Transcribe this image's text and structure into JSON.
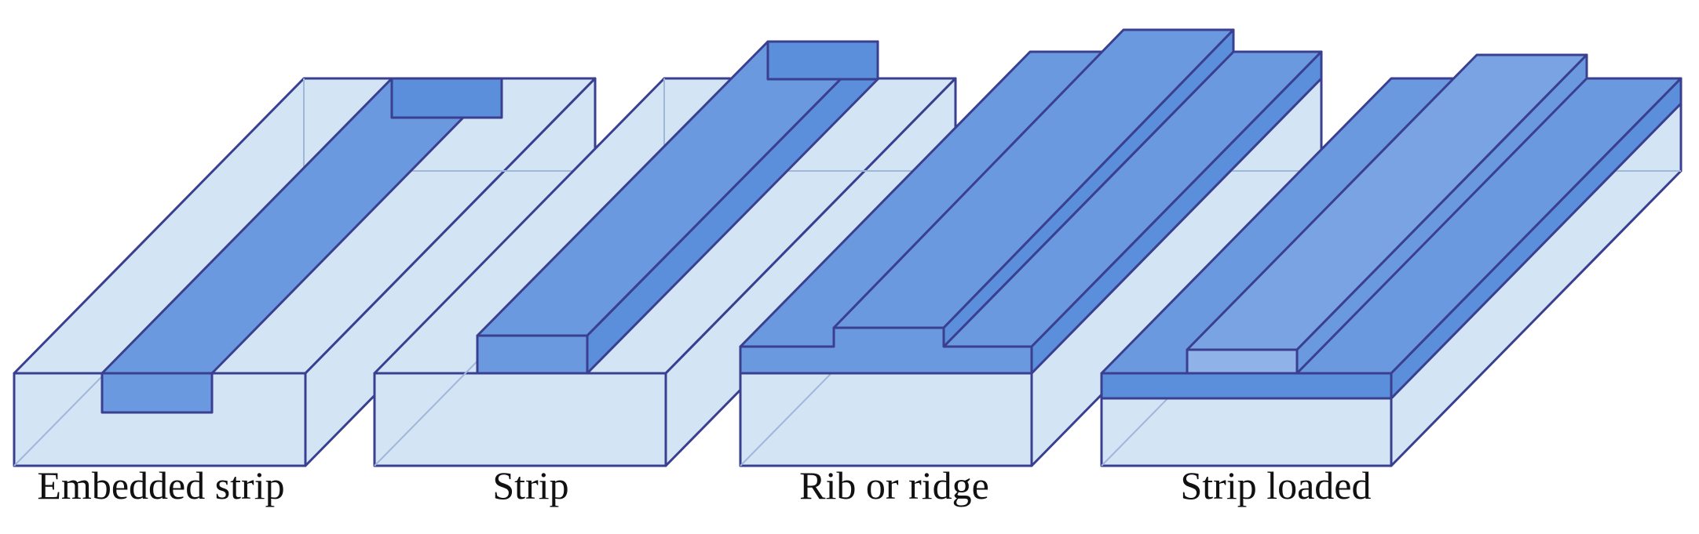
{
  "figure": {
    "colors": {
      "substrate": "#d3e4f4",
      "guide": "#5b8fdc",
      "guide_top": "#6a99e0",
      "edge": "#3a3f8f",
      "faint": "#9fb7d9"
    },
    "waveguides": [
      {
        "id": "embedded-strip",
        "label": "Embedded strip"
      },
      {
        "id": "strip",
        "label": "Strip"
      },
      {
        "id": "rib-or-ridge",
        "label": "Rib or ridge"
      },
      {
        "id": "strip-loaded",
        "label": "Strip loaded"
      }
    ]
  }
}
